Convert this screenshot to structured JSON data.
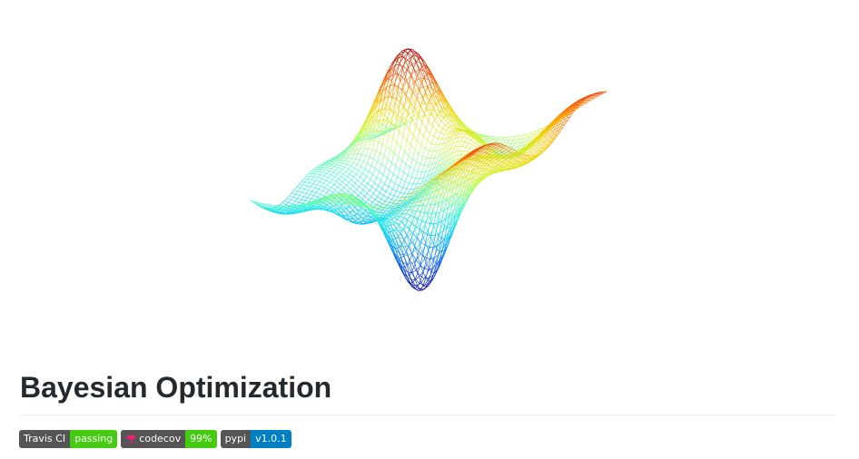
{
  "title": "Bayesian Optimization",
  "badges": [
    {
      "label": "Travis CI",
      "value": "passing",
      "value_color": "#44cc11"
    },
    {
      "label": "codecov",
      "value": "99%",
      "value_color": "#44cc11",
      "icon": "codecov-umbrella-icon"
    },
    {
      "label": "pypi",
      "value": "v1.0.1",
      "value_color": "#007ec6"
    }
  ],
  "hero_image": {
    "icon": "3d-wireframe-surface",
    "colormap": [
      "#00008b",
      "#0050ff",
      "#00c8ff",
      "#40ffd0",
      "#c8ff40",
      "#ffc800",
      "#ff5000",
      "#a00000"
    ]
  }
}
